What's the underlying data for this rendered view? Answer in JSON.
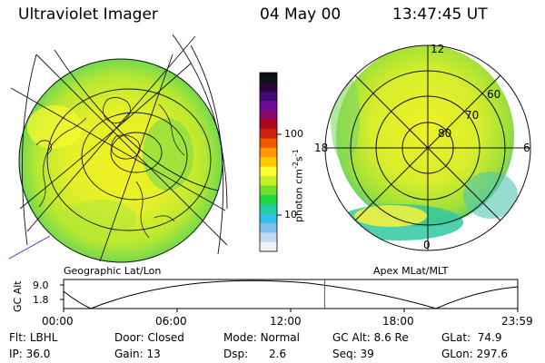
{
  "header": {
    "instrument": "Ultraviolet Imager",
    "date": "04 May 00",
    "time": "13:47:45 UT"
  },
  "colorbar": {
    "unit_label": "photon cm",
    "unit_exp1": "-2",
    "unit_mid": "s",
    "unit_exp2": "-1",
    "ticks": [
      "100",
      "10"
    ],
    "colors_top_to_bottom": [
      "#101018",
      "#280838",
      "#400a70",
      "#6a0a9a",
      "#8a0a6a",
      "#b0081a",
      "#d02010",
      "#f05800",
      "#ff9800",
      "#ffc800",
      "#ffff30",
      "#c8f028",
      "#70e028",
      "#20d840",
      "#20d0a0",
      "#30c0e8",
      "#80c0e8",
      "#c0d8f0",
      "#f0f0f8"
    ]
  },
  "left_panel": {
    "label": "Geographic Lat/Lon"
  },
  "right_panel": {
    "label": "Apex MLat/MLT",
    "mlt_labels": {
      "top": "12",
      "left": "18",
      "right": "6",
      "bottom": "0"
    },
    "lat_labels": [
      "60",
      "70",
      "80"
    ]
  },
  "timeline": {
    "ylabel": "GC Alt",
    "yticks": [
      "9.0",
      "1.8"
    ],
    "xticks": [
      "00:00",
      "06:00",
      "12:00",
      "18:00",
      "23:59"
    ],
    "current_time_fraction": 0.5748,
    "current_marker_color": "#d02020"
  },
  "status": {
    "row1": [
      {
        "label": "Flt:",
        "value": "LBHL"
      },
      {
        "label": "Door:",
        "value": "Closed"
      },
      {
        "label": "Mode:",
        "value": "Normal"
      },
      {
        "label": "GC Alt:",
        "value": "8.6 Re"
      },
      {
        "label": "GLat:",
        "value": "74.9"
      }
    ],
    "row2": [
      {
        "label": "IP:",
        "value": "36.0"
      },
      {
        "label": "Gain:",
        "value": "13"
      },
      {
        "label": "Dsp:",
        "value": "2.6"
      },
      {
        "label": "Seq:",
        "value": "39"
      },
      {
        "label": "GLon:",
        "value": "297.6"
      }
    ]
  }
}
